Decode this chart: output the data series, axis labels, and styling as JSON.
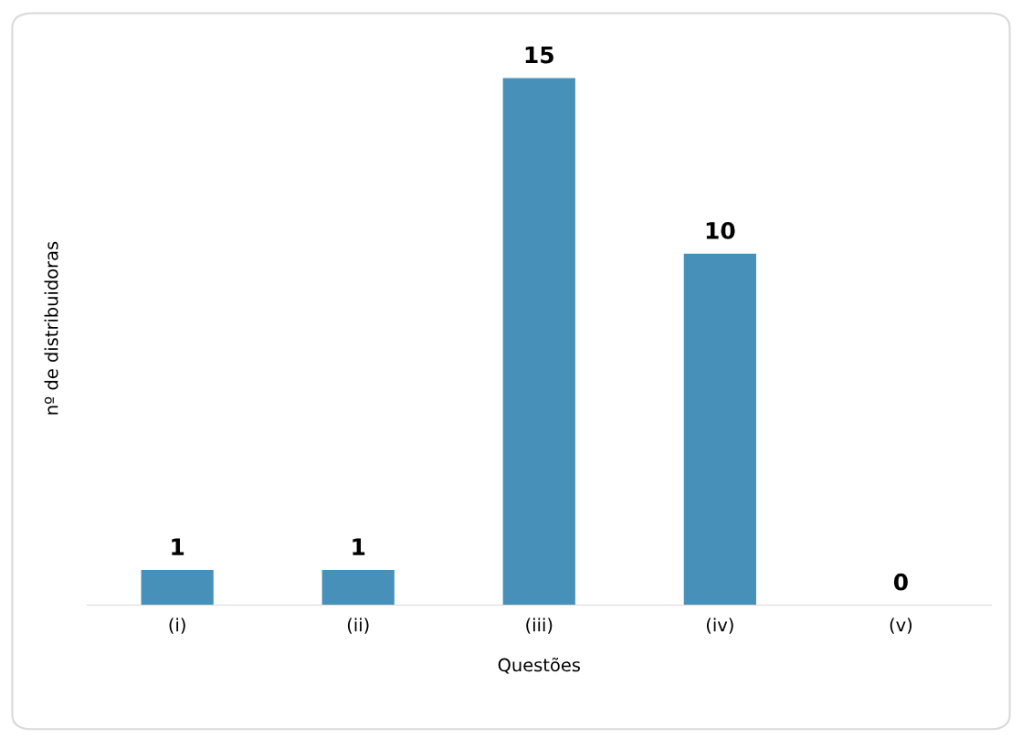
{
  "chart_data": {
    "type": "bar",
    "xlabel": "Questões",
    "ylabel": "nº de distribuidoras",
    "categories": [
      "(i)",
      "(ii)",
      "(iii)",
      "(iv)",
      "(v)"
    ],
    "values": [
      1,
      1,
      15,
      10,
      0
    ],
    "color": "#4690b9",
    "data_labels": true,
    "grid": false,
    "legend": false
  }
}
